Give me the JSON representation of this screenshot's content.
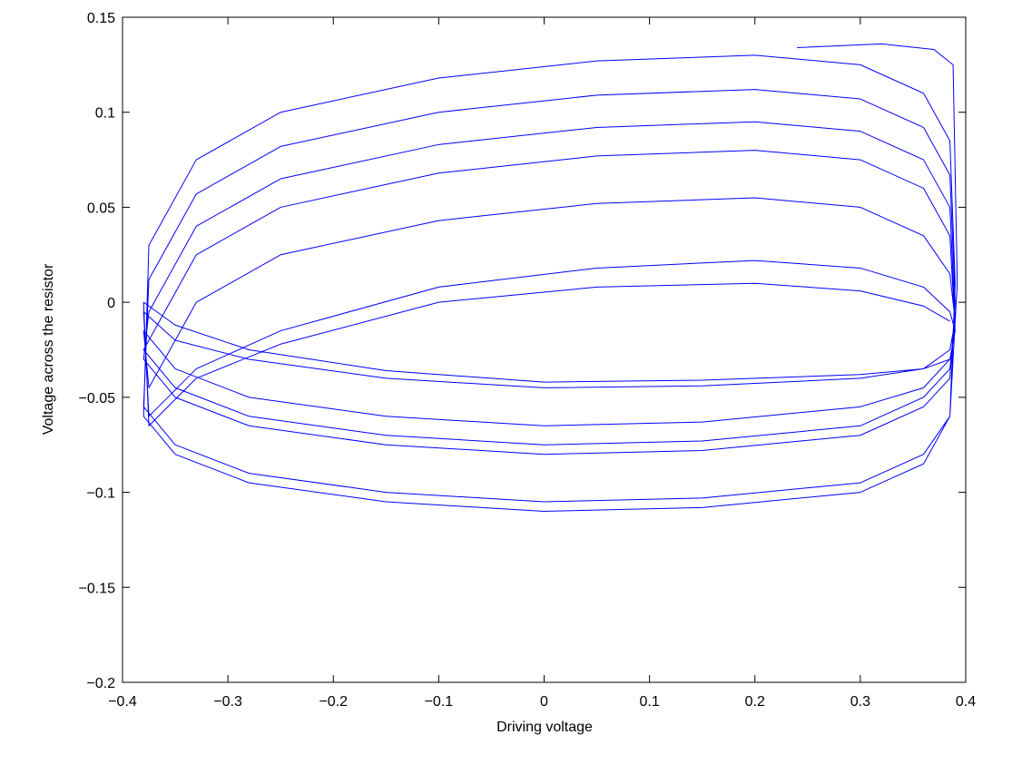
{
  "chart_data": {
    "type": "line",
    "x_label": "Driving voltage",
    "y_label": "Voltage across the resistor",
    "color": "#0000ff",
    "xlim": [
      -0.4,
      0.4
    ],
    "ylim": [
      -0.2,
      0.15
    ],
    "xticks": [
      {
        "value": -0.4,
        "label": "−0.4"
      },
      {
        "value": -0.3,
        "label": "−0.3"
      },
      {
        "value": -0.2,
        "label": "−0.2"
      },
      {
        "value": -0.1,
        "label": "−0.1"
      },
      0,
      0.1,
      0.2,
      0.3,
      0.4
    ],
    "yticks": [
      {
        "value": -0.2,
        "label": "−0.2"
      },
      {
        "value": -0.15,
        "label": "−0.15"
      },
      {
        "value": -0.1,
        "label": "−0.1"
      },
      {
        "value": -0.05,
        "label": "−0.05"
      },
      0,
      0.05,
      0.1,
      0.15
    ],
    "x": [
      0.24,
      0.32,
      0.37,
      0.388,
      0.392,
      0.385,
      0.36,
      0.3,
      0.15,
      0,
      -0.15,
      -0.28,
      -0.35,
      -0.38,
      -0.375,
      -0.33,
      -0.25,
      -0.1,
      0.05,
      0.2,
      0.3,
      0.36,
      0.385,
      0.39,
      0.385,
      0.36,
      0.3,
      0.15,
      0,
      -0.15,
      -0.28,
      -0.35,
      -0.38,
      -0.375,
      -0.33,
      -0.25,
      -0.1,
      0.05,
      0.2,
      0.3,
      0.36,
      0.385,
      0.39,
      0.385,
      0.36,
      0.3,
      0.15,
      0,
      -0.15,
      -0.28,
      -0.35,
      -0.38,
      -0.375,
      -0.33,
      -0.25,
      -0.1,
      0.05,
      0.2,
      0.3,
      0.36,
      0.385,
      0.39,
      0.385,
      0.36,
      0.3,
      0.15,
      0,
      -0.15,
      -0.28,
      -0.35,
      -0.38,
      -0.375,
      -0.33,
      -0.25,
      -0.1,
      0.05,
      0.2,
      0.3,
      0.36,
      0.385,
      0.39,
      0.385,
      0.36,
      0.3,
      0.15,
      0,
      -0.15,
      -0.28,
      -0.35,
      -0.38,
      -0.375,
      -0.33,
      -0.25,
      -0.1,
      0.05,
      0.2,
      0.3,
      0.36,
      0.385,
      0.39,
      0.385,
      0.36,
      0.3,
      0.15,
      0,
      -0.15,
      -0.28,
      -0.35,
      -0.38,
      -0.375,
      -0.33,
      -0.25,
      -0.1,
      0.05,
      0.2,
      0.3,
      0.36,
      0.385,
      0.39,
      0.385,
      0.36,
      0.3,
      0.15,
      0,
      -0.15,
      -0.28,
      -0.35,
      -0.38,
      -0.375,
      -0.33,
      -0.25,
      -0.1,
      0.05,
      0.2,
      0.3,
      0.36,
      0.385
    ],
    "values": [
      0.134,
      0.136,
      0.133,
      0.125,
      0.01,
      -0.06,
      -0.085,
      -0.1,
      -0.108,
      -0.11,
      -0.105,
      -0.095,
      -0.08,
      -0.06,
      0.03,
      0.075,
      0.1,
      0.118,
      0.127,
      0.13,
      0.125,
      0.11,
      0.085,
      0.01,
      -0.06,
      -0.08,
      -0.095,
      -0.103,
      -0.105,
      -0.1,
      -0.09,
      -0.075,
      -0.055,
      0.012,
      0.057,
      0.082,
      0.1,
      0.109,
      0.112,
      0.107,
      0.092,
      0.067,
      0.0,
      -0.04,
      -0.055,
      -0.07,
      -0.078,
      -0.08,
      -0.075,
      -0.065,
      -0.05,
      -0.03,
      -0.005,
      0.04,
      0.065,
      0.083,
      0.092,
      0.095,
      0.09,
      0.075,
      0.05,
      -0.01,
      -0.035,
      -0.05,
      -0.065,
      -0.073,
      -0.075,
      -0.07,
      -0.06,
      -0.045,
      -0.025,
      -0.02,
      0.025,
      0.05,
      0.068,
      0.077,
      0.08,
      0.075,
      0.06,
      0.035,
      -0.015,
      -0.03,
      -0.045,
      -0.055,
      -0.063,
      -0.065,
      -0.06,
      -0.05,
      -0.035,
      -0.015,
      -0.045,
      0.0,
      0.025,
      0.043,
      0.052,
      0.055,
      0.05,
      0.035,
      0.015,
      -0.01,
      -0.025,
      -0.035,
      -0.04,
      -0.044,
      -0.045,
      -0.04,
      -0.03,
      -0.02,
      -0.005,
      -0.06,
      -0.035,
      -0.015,
      0.008,
      0.018,
      0.022,
      0.018,
      0.008,
      -0.005,
      -0.015,
      -0.03,
      -0.035,
      -0.038,
      -0.041,
      -0.042,
      -0.036,
      -0.025,
      -0.012,
      0.0,
      -0.065,
      -0.04,
      -0.022,
      0.0,
      0.008,
      0.01,
      0.006,
      -0.002,
      -0.01
    ]
  }
}
